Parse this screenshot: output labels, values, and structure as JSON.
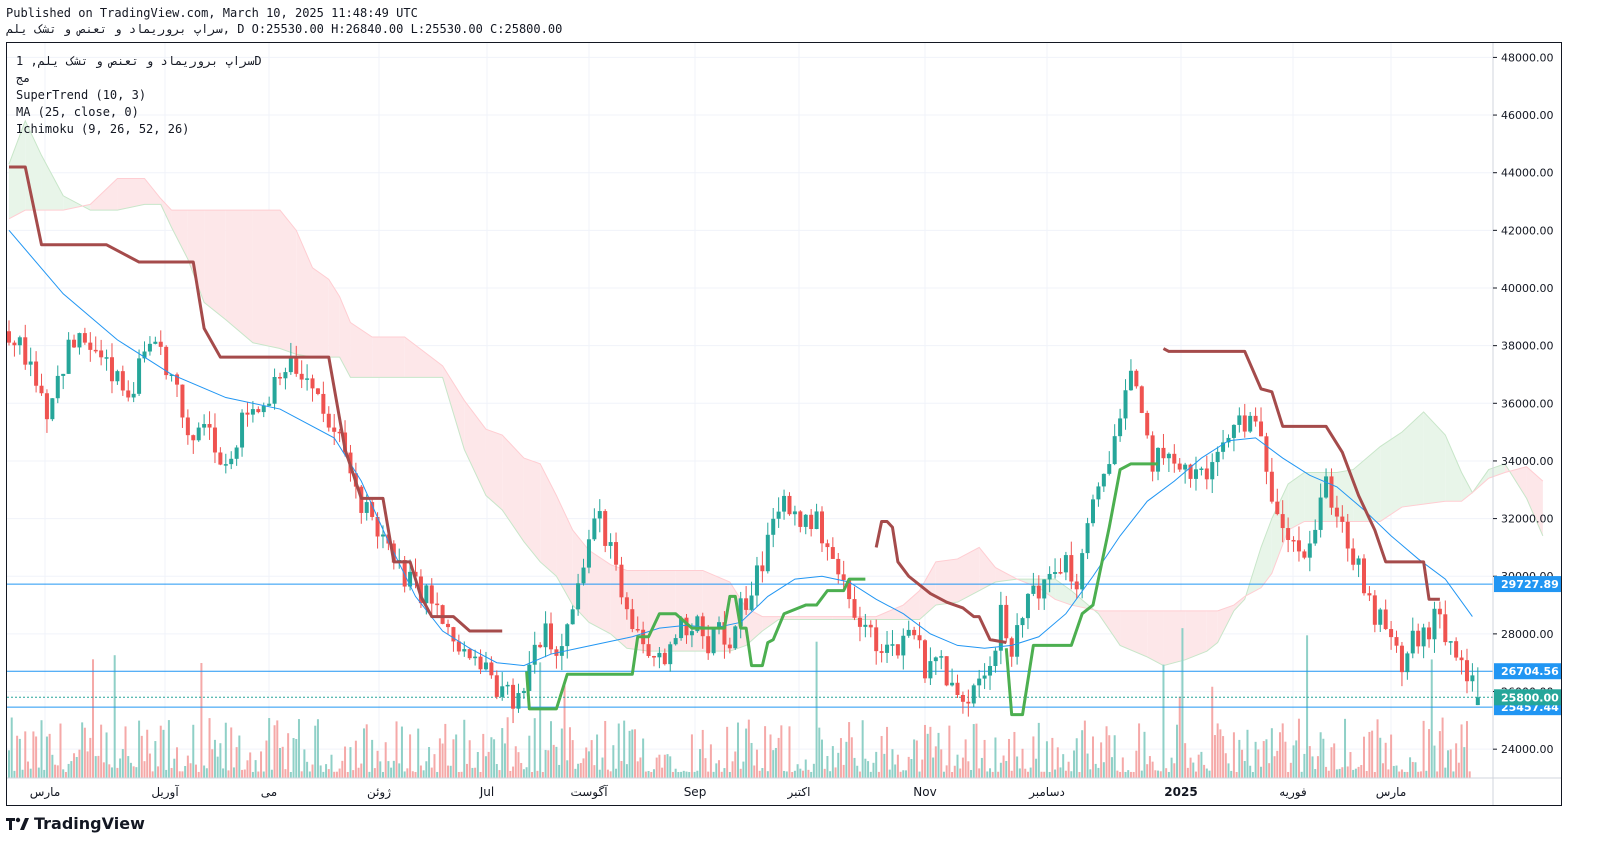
{
  "header": {
    "published": "Published on TradingView.com, March 10, 2025 11:48:49 UTC",
    "symbol_line": "سراپ بروریماد و تعنص و تشک یلم, D O:25530.00 H:26840.00 L:25530.00 C:25800.00"
  },
  "legend": {
    "title": "سراپ بروریماد و تعنص و تشک یلم, 1D",
    "subtitle": "مج",
    "indicators": [
      "SuperTrend (10, 3)",
      "MA (25, close, 0)",
      "Ichimoku (9, 26, 52, 26)"
    ]
  },
  "brand": {
    "name": "TradingView",
    "icon": "tradingview-logo-icon"
  },
  "colors": {
    "up": "#26a69a",
    "down": "#ef5350",
    "supertrend_up": "#4caf50",
    "supertrend_down": "#a54b4b",
    "ma": "#2196f3",
    "cloud_bull": "#c8e6c9",
    "cloud_bear": "#ffcdd2",
    "hline": "#2196f3",
    "last_price": "#26a69a"
  },
  "chart_data": {
    "type": "candlestick",
    "y_axis": {
      "range": [
        23000,
        48500
      ],
      "ticks": [
        "48000.00",
        "46000.00",
        "44000.00",
        "42000.00",
        "40000.00",
        "38000.00",
        "36000.00",
        "34000.00",
        "32000.00",
        "30000.00",
        "28000.00",
        "26000.00",
        "24000.00"
      ]
    },
    "x_labels": [
      "مارس",
      "آوریل",
      "می",
      "ژوئن",
      "Jul",
      "آگوست",
      "Sep",
      "اکتبر",
      "Nov",
      "دسامبر",
      "2025",
      "فوریه",
      "مارس"
    ],
    "price_lines": [
      {
        "label": "29727.89",
        "value": 29727.89
      },
      {
        "label": "26704.56",
        "value": 26704.56
      },
      {
        "label": "25457.44",
        "value": 25457.44
      }
    ],
    "last_price": {
      "label": "25800.00",
      "value": 25800
    },
    "ohlc_last": {
      "open": 25530,
      "high": 26840,
      "low": 25530,
      "close": 25800
    },
    "close_path": [
      [
        0,
        38500
      ],
      [
        8,
        37500
      ],
      [
        14,
        35800
      ],
      [
        22,
        37900
      ],
      [
        28,
        38200
      ],
      [
        36,
        37200
      ],
      [
        44,
        36200
      ],
      [
        50,
        37600
      ],
      [
        56,
        37800
      ],
      [
        62,
        36300
      ],
      [
        66,
        34500
      ],
      [
        72,
        35500
      ],
      [
        80,
        33900
      ],
      [
        88,
        35800
      ],
      [
        94,
        35900
      ],
      [
        100,
        37300
      ],
      [
        106,
        37200
      ],
      [
        112,
        36400
      ],
      [
        118,
        35200
      ],
      [
        122,
        34700
      ],
      [
        126,
        33600
      ],
      [
        130,
        32600
      ],
      [
        136,
        31700
      ],
      [
        142,
        30400
      ],
      [
        148,
        29800
      ],
      [
        156,
        29200
      ],
      [
        162,
        27900
      ],
      [
        168,
        27300
      ],
      [
        176,
        26700
      ],
      [
        182,
        25900
      ],
      [
        188,
        25600
      ],
      [
        194,
        27500
      ],
      [
        198,
        28400
      ],
      [
        202,
        27200
      ],
      [
        206,
        28700
      ],
      [
        210,
        29600
      ],
      [
        214,
        31300
      ],
      [
        218,
        32000
      ],
      [
        222,
        31000
      ],
      [
        226,
        29100
      ],
      [
        230,
        28100
      ],
      [
        234,
        27600
      ],
      [
        238,
        27100
      ],
      [
        242,
        27100
      ],
      [
        246,
        28100
      ],
      [
        250,
        28300
      ],
      [
        254,
        28600
      ],
      [
        258,
        27700
      ],
      [
        262,
        28300
      ],
      [
        266,
        27200
      ],
      [
        270,
        28900
      ],
      [
        274,
        29500
      ],
      [
        278,
        30600
      ],
      [
        282,
        31800
      ],
      [
        286,
        32600
      ],
      [
        290,
        32100
      ],
      [
        294,
        31900
      ],
      [
        298,
        31800
      ],
      [
        302,
        31300
      ],
      [
        306,
        30100
      ],
      [
        310,
        29100
      ],
      [
        314,
        28200
      ],
      [
        318,
        28000
      ],
      [
        322,
        27600
      ],
      [
        326,
        27400
      ],
      [
        330,
        27900
      ],
      [
        334,
        28200
      ],
      [
        338,
        26900
      ],
      [
        342,
        27300
      ],
      [
        346,
        26500
      ],
      [
        350,
        25700
      ],
      [
        354,
        25900
      ],
      [
        358,
        26800
      ],
      [
        362,
        27000
      ],
      [
        366,
        28600
      ],
      [
        370,
        27100
      ],
      [
        374,
        28700
      ],
      [
        378,
        29800
      ],
      [
        382,
        29500
      ],
      [
        386,
        30200
      ],
      [
        390,
        30600
      ],
      [
        394,
        29600
      ],
      [
        398,
        31500
      ],
      [
        402,
        33100
      ],
      [
        406,
        34300
      ],
      [
        410,
        35500
      ],
      [
        414,
        36900
      ],
      [
        418,
        35400
      ],
      [
        422,
        34000
      ],
      [
        426,
        34400
      ],
      [
        430,
        33500
      ],
      [
        434,
        34000
      ],
      [
        438,
        33500
      ],
      [
        442,
        33500
      ],
      [
        446,
        34100
      ],
      [
        450,
        34800
      ],
      [
        454,
        35500
      ],
      [
        458,
        35300
      ],
      [
        462,
        34600
      ],
      [
        466,
        33000
      ],
      [
        470,
        32000
      ],
      [
        474,
        31400
      ],
      [
        478,
        30800
      ],
      [
        482,
        31600
      ],
      [
        486,
        33200
      ],
      [
        490,
        32300
      ],
      [
        494,
        31100
      ],
      [
        498,
        30200
      ],
      [
        502,
        28900
      ],
      [
        506,
        28400
      ],
      [
        510,
        27700
      ],
      [
        514,
        26900
      ],
      [
        518,
        27800
      ],
      [
        522,
        27800
      ],
      [
        526,
        28600
      ],
      [
        530,
        27900
      ],
      [
        534,
        27400
      ],
      [
        538,
        26500
      ],
      [
        542,
        25800
      ]
    ],
    "ma_path": [
      [
        0,
        42000
      ],
      [
        20,
        39800
      ],
      [
        40,
        38200
      ],
      [
        60,
        37000
      ],
      [
        80,
        36200
      ],
      [
        100,
        35800
      ],
      [
        120,
        34800
      ],
      [
        130,
        33300
      ],
      [
        140,
        31200
      ],
      [
        150,
        29300
      ],
      [
        160,
        28100
      ],
      [
        170,
        27500
      ],
      [
        180,
        27000
      ],
      [
        190,
        26900
      ],
      [
        200,
        27300
      ],
      [
        210,
        27500
      ],
      [
        220,
        27700
      ],
      [
        230,
        27900
      ],
      [
        240,
        28200
      ],
      [
        250,
        28300
      ],
      [
        260,
        28200
      ],
      [
        270,
        28400
      ],
      [
        280,
        29300
      ],
      [
        290,
        29900
      ],
      [
        300,
        30000
      ],
      [
        310,
        29800
      ],
      [
        320,
        29200
      ],
      [
        330,
        28700
      ],
      [
        340,
        28000
      ],
      [
        350,
        27600
      ],
      [
        360,
        27500
      ],
      [
        370,
        27600
      ],
      [
        380,
        27900
      ],
      [
        390,
        28700
      ],
      [
        400,
        30000
      ],
      [
        410,
        31400
      ],
      [
        420,
        32600
      ],
      [
        430,
        33300
      ],
      [
        440,
        34100
      ],
      [
        450,
        34700
      ],
      [
        460,
        34800
      ],
      [
        470,
        34100
      ],
      [
        480,
        33500
      ],
      [
        490,
        33100
      ],
      [
        500,
        32300
      ],
      [
        510,
        31400
      ],
      [
        520,
        30600
      ],
      [
        530,
        29900
      ],
      [
        540,
        28600
      ]
    ],
    "supertrend_segments": [
      {
        "trend": "down",
        "points": [
          [
            0,
            44200
          ],
          [
            6,
            44200
          ],
          [
            12,
            41500
          ],
          [
            36,
            41500
          ],
          [
            48,
            40900
          ],
          [
            68,
            40900
          ],
          [
            72,
            38600
          ],
          [
            78,
            37600
          ],
          [
            118,
            37600
          ],
          [
            124,
            34400
          ],
          [
            130,
            32700
          ],
          [
            138,
            32700
          ],
          [
            142,
            30500
          ],
          [
            148,
            30500
          ],
          [
            152,
            29300
          ],
          [
            156,
            28600
          ],
          [
            164,
            28600
          ],
          [
            170,
            28100
          ],
          [
            182,
            28100
          ]
        ]
      },
      {
        "trend": "up",
        "points": [
          [
            191,
            26700
          ],
          [
            192,
            25400
          ],
          [
            202,
            25400
          ],
          [
            206,
            26600
          ],
          [
            230,
            26600
          ],
          [
            232,
            27900
          ],
          [
            236,
            27900
          ],
          [
            240,
            28700
          ],
          [
            246,
            28700
          ],
          [
            252,
            28200
          ],
          [
            264,
            28200
          ],
          [
            266,
            29300
          ],
          [
            268,
            29300
          ],
          [
            270,
            28200
          ],
          [
            272,
            28200
          ],
          [
            274,
            26900
          ],
          [
            278,
            26900
          ],
          [
            280,
            27700
          ],
          [
            282,
            27800
          ],
          [
            286,
            28700
          ],
          [
            294,
            29000
          ],
          [
            298,
            29000
          ],
          [
            302,
            29500
          ],
          [
            308,
            29500
          ],
          [
            310,
            29900
          ],
          [
            316,
            29900
          ]
        ]
      },
      {
        "trend": "down",
        "points": [
          [
            320,
            31000
          ],
          [
            322,
            31900
          ],
          [
            324,
            31900
          ],
          [
            326,
            31700
          ],
          [
            328,
            30500
          ],
          [
            332,
            30000
          ],
          [
            340,
            29400
          ],
          [
            346,
            29100
          ],
          [
            352,
            28900
          ],
          [
            356,
            28600
          ],
          [
            358,
            28600
          ],
          [
            362,
            27800
          ],
          [
            368,
            27700
          ]
        ]
      },
      {
        "trend": "up",
        "points": [
          [
            368,
            27500
          ],
          [
            370,
            25200
          ],
          [
            374,
            25200
          ],
          [
            378,
            27600
          ],
          [
            392,
            27600
          ],
          [
            396,
            28700
          ],
          [
            400,
            29000
          ],
          [
            404,
            30800
          ],
          [
            406,
            31700
          ],
          [
            410,
            33700
          ],
          [
            414,
            33900
          ],
          [
            424,
            33900
          ]
        ]
      },
      {
        "trend": "down",
        "points": [
          [
            426,
            37900
          ],
          [
            428,
            37800
          ],
          [
            456,
            37800
          ],
          [
            462,
            36500
          ],
          [
            466,
            36400
          ],
          [
            470,
            35200
          ],
          [
            486,
            35200
          ],
          [
            492,
            34300
          ],
          [
            498,
            32800
          ],
          [
            504,
            31600
          ],
          [
            508,
            30500
          ],
          [
            522,
            30500
          ],
          [
            524,
            29200
          ],
          [
            528,
            29200
          ]
        ]
      }
    ],
    "cloud": [
      [
        0,
        44300,
        42400
      ],
      [
        6,
        45800,
        42700
      ],
      [
        12,
        44600,
        42700
      ],
      [
        20,
        43200,
        42700
      ],
      [
        30,
        42700,
        42900
      ],
      [
        40,
        42700,
        43800
      ],
      [
        50,
        42900,
        43800
      ],
      [
        56,
        42900,
        43100
      ],
      [
        60,
        42100,
        42700
      ],
      [
        66,
        41000,
        42700
      ],
      [
        72,
        39500,
        42700
      ],
      [
        80,
        38900,
        42700
      ],
      [
        90,
        38100,
        42700
      ],
      [
        100,
        37900,
        42700
      ],
      [
        106,
        37700,
        42000
      ],
      [
        112,
        37600,
        40700
      ],
      [
        118,
        37600,
        40300
      ],
      [
        122,
        37600,
        39700
      ],
      [
        126,
        36900,
        38800
      ],
      [
        134,
        36900,
        38300
      ],
      [
        146,
        36900,
        38300
      ],
      [
        160,
        36900,
        37300
      ],
      [
        168,
        34400,
        36100
      ],
      [
        176,
        32800,
        35100
      ],
      [
        182,
        32300,
        34900
      ],
      [
        190,
        31200,
        34100
      ],
      [
        196,
        30500,
        33900
      ],
      [
        202,
        30000,
        32800
      ],
      [
        208,
        29000,
        31600
      ],
      [
        214,
        28400,
        30900
      ],
      [
        222,
        28000,
        30400
      ],
      [
        228,
        27500,
        30200
      ],
      [
        236,
        27400,
        30200
      ],
      [
        246,
        27400,
        30200
      ],
      [
        256,
        27400,
        30200
      ],
      [
        266,
        27400,
        29800
      ],
      [
        272,
        27600,
        28900
      ],
      [
        278,
        28100,
        28600
      ],
      [
        284,
        28500,
        28600
      ],
      [
        290,
        28500,
        28600
      ],
      [
        304,
        28500,
        28600
      ],
      [
        320,
        28500,
        28600
      ],
      [
        330,
        28500,
        29000
      ],
      [
        336,
        28500,
        29500
      ],
      [
        342,
        29000,
        30500
      ],
      [
        350,
        29100,
        30600
      ],
      [
        358,
        29500,
        31000
      ],
      [
        364,
        29800,
        30300
      ],
      [
        372,
        29900,
        29900
      ],
      [
        380,
        29900,
        29600
      ],
      [
        386,
        29900,
        29200
      ],
      [
        392,
        29500,
        29000
      ],
      [
        402,
        28700,
        28800
      ],
      [
        410,
        27600,
        28800
      ],
      [
        420,
        27200,
        28800
      ],
      [
        426,
        26900,
        28800
      ],
      [
        434,
        27100,
        28800
      ],
      [
        442,
        27400,
        28800
      ],
      [
        446,
        27700,
        28800
      ],
      [
        452,
        28800,
        29000
      ],
      [
        456,
        29200,
        29300
      ],
      [
        462,
        31000,
        29600
      ],
      [
        466,
        32000,
        30100
      ],
      [
        472,
        33200,
        31600
      ],
      [
        478,
        33600,
        31900
      ],
      [
        486,
        33600,
        31900
      ],
      [
        490,
        33600,
        31900
      ],
      [
        496,
        33700,
        31900
      ],
      [
        506,
        34500,
        31900
      ],
      [
        514,
        35000,
        32400
      ],
      [
        522,
        35700,
        32500
      ],
      [
        530,
        34900,
        32600
      ],
      [
        536,
        33600,
        32600
      ],
      [
        540,
        32900,
        32900
      ],
      [
        546,
        33700,
        33400
      ],
      [
        552,
        33900,
        33600
      ],
      [
        560,
        32700,
        33800
      ],
      [
        566,
        31400,
        33300
      ]
    ],
    "volume_bars_count": 540
  }
}
